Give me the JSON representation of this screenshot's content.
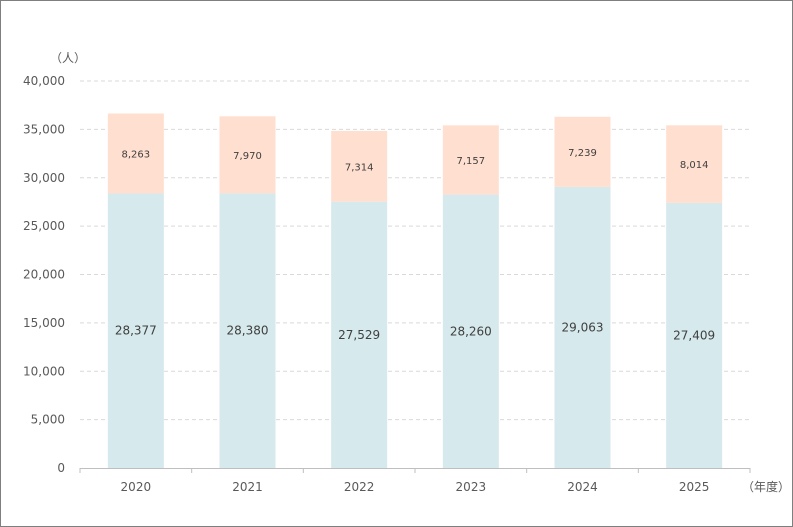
{
  "chart_data": {
    "type": "bar",
    "stacked": true,
    "categories": [
      "2020",
      "2021",
      "2022",
      "2023",
      "2024",
      "2025"
    ],
    "series": [
      {
        "values": [
          28377,
          28380,
          27529,
          28260,
          29063,
          27409
        ],
        "color": "#d6e9ec"
      },
      {
        "values": [
          8263,
          7970,
          7314,
          7157,
          7239,
          8014
        ],
        "color": "#ffdfcf"
      }
    ],
    "data_labels": {
      "bottom": [
        "28,377",
        "28,380",
        "27,529",
        "28,260",
        "29,063",
        "27,409"
      ],
      "top": [
        "8,263",
        "7,970",
        "7,314",
        "7,157",
        "7,239",
        "8,014"
      ]
    },
    "yticks": [
      "0",
      "5,000",
      "10,000",
      "15,000",
      "20,000",
      "25,000",
      "30,000",
      "35,000",
      "40,000"
    ],
    "ylim": [
      0,
      40000
    ],
    "ylabel": "（人）",
    "xlabel": "（年度）",
    "grid": true
  }
}
